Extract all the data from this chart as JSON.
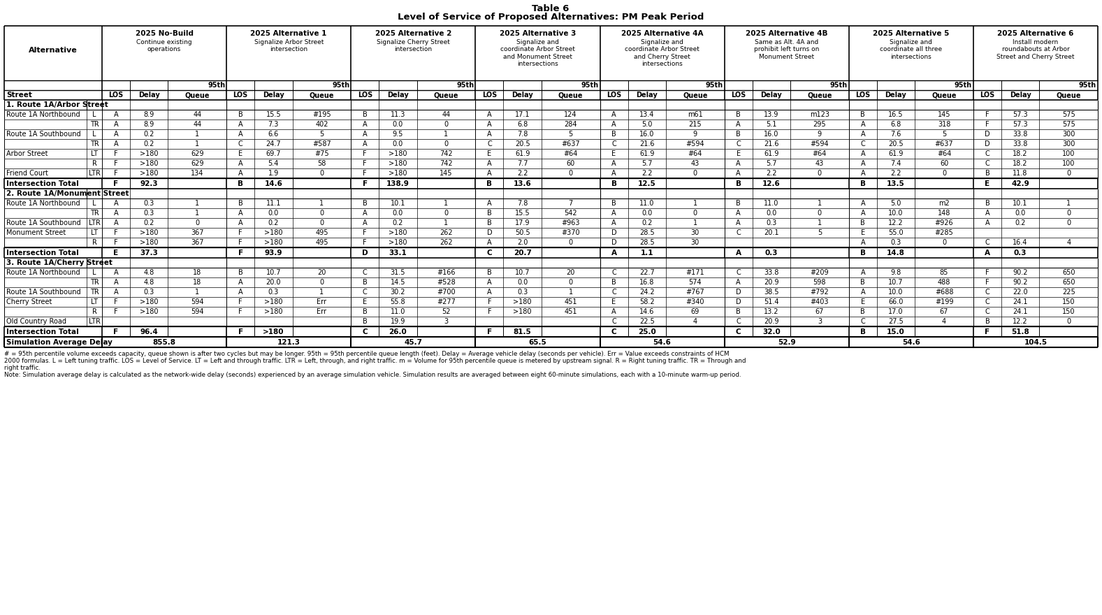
{
  "title1": "Table 6",
  "title2": "Level of Service of Proposed Alternatives: PM Peak Period",
  "col_headers": [
    "2025 No-Build",
    "2025 Alternative 1",
    "2025 Alternative 2",
    "2025 Alternative 3",
    "2025 Alternative 4A",
    "2025 Alternative 4B",
    "2025 Alternative 5",
    "2025 Alternative 6"
  ],
  "col_subtexts": [
    "Continue existing\noperations",
    "Signalize Arbor Street\nintersection",
    "Signalize Cherry Street\nintersection",
    "Signalize and\ncoordinate Arbor Street\nand Monument Street\nintersections",
    "Signalize and\ncoordinate Arbor Street\nand Cherry Street\nintersections",
    "Same as Alt. 4A and\nprohibit left turns on\nMonument Street",
    "Signalize and\ncoordinate all three\nintersections",
    "Install modern\nroundabouts at Arbor\nStreet and Cherry Street"
  ],
  "rows": [
    {
      "type": "section",
      "label": "1. Route 1A/Arbor Street"
    },
    {
      "type": "data",
      "street": "Route 1A Northbound",
      "move": "L",
      "data": [
        [
          "A",
          "8.9",
          "44"
        ],
        [
          "B",
          "15.5",
          "#195"
        ],
        [
          "B",
          "11.3",
          "44"
        ],
        [
          "A",
          "17.1",
          "124"
        ],
        [
          "A",
          "13.4",
          "m61"
        ],
        [
          "B",
          "13.9",
          "m123"
        ],
        [
          "B",
          "16.5",
          "145"
        ],
        [
          "F",
          "57.3",
          "575"
        ]
      ]
    },
    {
      "type": "data",
      "street": "",
      "move": "TR",
      "data": [
        [
          "A",
          "8.9",
          "44"
        ],
        [
          "A",
          "7.3",
          "402"
        ],
        [
          "A",
          "0.0",
          "0"
        ],
        [
          "A",
          "6.8",
          "284"
        ],
        [
          "A",
          "5.0",
          "215"
        ],
        [
          "A",
          "5.1",
          "295"
        ],
        [
          "A",
          "6.8",
          "318"
        ],
        [
          "F",
          "57.3",
          "575"
        ]
      ]
    },
    {
      "type": "data",
      "street": "Route 1A Southbound",
      "move": "L",
      "data": [
        [
          "A",
          "0.2",
          "1"
        ],
        [
          "A",
          "6.6",
          "5"
        ],
        [
          "A",
          "9.5",
          "1"
        ],
        [
          "A",
          "7.8",
          "5"
        ],
        [
          "B",
          "16.0",
          "9"
        ],
        [
          "B",
          "16.0",
          "9"
        ],
        [
          "A",
          "7.6",
          "5"
        ],
        [
          "D",
          "33.8",
          "300"
        ]
      ]
    },
    {
      "type": "data",
      "street": "",
      "move": "TR",
      "data": [
        [
          "A",
          "0.2",
          "1"
        ],
        [
          "C",
          "24.7",
          "#587"
        ],
        [
          "A",
          "0.0",
          "0"
        ],
        [
          "C",
          "20.5",
          "#637"
        ],
        [
          "C",
          "21.6",
          "#594"
        ],
        [
          "C",
          "21.6",
          "#594"
        ],
        [
          "C",
          "20.5",
          "#637"
        ],
        [
          "D",
          "33.8",
          "300"
        ]
      ]
    },
    {
      "type": "data",
      "street": "Arbor Street",
      "move": "LT",
      "data": [
        [
          "F",
          ">180",
          "629"
        ],
        [
          "E",
          "69.7",
          "#75"
        ],
        [
          "F",
          ">180",
          "742"
        ],
        [
          "E",
          "61.9",
          "#64"
        ],
        [
          "E",
          "61.9",
          "#64"
        ],
        [
          "E",
          "61.9",
          "#64"
        ],
        [
          "A",
          "61.9",
          "#64"
        ],
        [
          "C",
          "18.2",
          "100"
        ]
      ]
    },
    {
      "type": "data",
      "street": "",
      "move": "R",
      "data": [
        [
          "F",
          ">180",
          "629"
        ],
        [
          "A",
          "5.4",
          "58"
        ],
        [
          "F",
          ">180",
          "742"
        ],
        [
          "A",
          "7.7",
          "60"
        ],
        [
          "A",
          "5.7",
          "43"
        ],
        [
          "A",
          "5.7",
          "43"
        ],
        [
          "A",
          "7.4",
          "60"
        ],
        [
          "C",
          "18.2",
          "100"
        ]
      ]
    },
    {
      "type": "data",
      "street": "Friend Court",
      "move": "LTR",
      "data": [
        [
          "F",
          ">180",
          "134"
        ],
        [
          "A",
          "1.9",
          "0"
        ],
        [
          "F",
          ">180",
          "145"
        ],
        [
          "A",
          "2.2",
          "0"
        ],
        [
          "A",
          "2.2",
          "0"
        ],
        [
          "A",
          "2.2",
          "0"
        ],
        [
          "A",
          "2.2",
          "0"
        ],
        [
          "B",
          "11.8",
          "0"
        ]
      ]
    },
    {
      "type": "total",
      "label": "Intersection Total",
      "data": [
        [
          "F",
          "92.3",
          ""
        ],
        [
          "B",
          "14.6",
          ""
        ],
        [
          "F",
          "138.9",
          ""
        ],
        [
          "B",
          "13.6",
          ""
        ],
        [
          "B",
          "12.5",
          ""
        ],
        [
          "B",
          "12.6",
          ""
        ],
        [
          "B",
          "13.5",
          ""
        ],
        [
          "E",
          "42.9",
          ""
        ]
      ]
    },
    {
      "type": "section",
      "label": "2. Route 1A/Monument Street"
    },
    {
      "type": "data",
      "street": "Route 1A Northbound",
      "move": "L",
      "data": [
        [
          "A",
          "0.3",
          "1"
        ],
        [
          "B",
          "11.1",
          "1"
        ],
        [
          "B",
          "10.1",
          "1"
        ],
        [
          "A",
          "7.8",
          "7"
        ],
        [
          "B",
          "11.0",
          "1"
        ],
        [
          "B",
          "11.0",
          "1"
        ],
        [
          "A",
          "5.0",
          "m2"
        ],
        [
          "B",
          "10.1",
          "1"
        ]
      ]
    },
    {
      "type": "data",
      "street": "",
      "move": "TR",
      "data": [
        [
          "A",
          "0.3",
          "1"
        ],
        [
          "A",
          "0.0",
          "0"
        ],
        [
          "A",
          "0.0",
          "0"
        ],
        [
          "B",
          "15.5",
          "542"
        ],
        [
          "A",
          "0.0",
          "0"
        ],
        [
          "A",
          "0.0",
          "0"
        ],
        [
          "A",
          "10.0",
          "148"
        ],
        [
          "A",
          "0.0",
          "0"
        ]
      ]
    },
    {
      "type": "data",
      "street": "Route 1A Southbound",
      "move": "LTR",
      "data": [
        [
          "A",
          "0.2",
          "0"
        ],
        [
          "A",
          "0.2",
          "0"
        ],
        [
          "A",
          "0.2",
          "1"
        ],
        [
          "B",
          "17.9",
          "#963"
        ],
        [
          "A",
          "0.2",
          "1"
        ],
        [
          "A",
          "0.3",
          "1"
        ],
        [
          "B",
          "12.2",
          "#926"
        ],
        [
          "A",
          "0.2",
          "0"
        ]
      ]
    },
    {
      "type": "data",
      "street": "Monument Street",
      "move": "LT",
      "data": [
        [
          "F",
          ">180",
          "367"
        ],
        [
          "F",
          ">180",
          "495"
        ],
        [
          "F",
          ">180",
          "262"
        ],
        [
          "D",
          "50.5",
          "#370"
        ],
        [
          "D",
          "28.5",
          "30"
        ],
        [
          "C",
          "20.1",
          "5"
        ],
        [
          "E",
          "55.0",
          "#285"
        ],
        [
          "",
          "",
          ""
        ]
      ]
    },
    {
      "type": "data",
      "street": "",
      "move": "R",
      "data": [
        [
          "F",
          ">180",
          "367"
        ],
        [
          "F",
          ">180",
          "495"
        ],
        [
          "F",
          ">180",
          "262"
        ],
        [
          "A",
          "2.0",
          "0"
        ],
        [
          "D",
          "28.5",
          "30"
        ],
        [
          "",
          "",
          ""
        ],
        [
          "A",
          "0.3",
          "0"
        ],
        [
          "C",
          "16.4",
          "4"
        ]
      ]
    },
    {
      "type": "total",
      "label": "Intersection Total",
      "data": [
        [
          "E",
          "37.3",
          ""
        ],
        [
          "F",
          "93.9",
          ""
        ],
        [
          "D",
          "33.1",
          ""
        ],
        [
          "C",
          "20.7",
          ""
        ],
        [
          "A",
          "1.1",
          ""
        ],
        [
          "A",
          "0.3",
          ""
        ],
        [
          "B",
          "14.8",
          ""
        ],
        [
          "A",
          "0.3",
          ""
        ]
      ]
    },
    {
      "type": "section",
      "label": "3. Route 1A/Cherry Street"
    },
    {
      "type": "data",
      "street": "Route 1A Northbound",
      "move": "L",
      "data": [
        [
          "A",
          "4.8",
          "18"
        ],
        [
          "B",
          "10.7",
          "20"
        ],
        [
          "C",
          "31.5",
          "#166"
        ],
        [
          "B",
          "10.7",
          "20"
        ],
        [
          "C",
          "22.7",
          "#171"
        ],
        [
          "C",
          "33.8",
          "#209"
        ],
        [
          "A",
          "9.8",
          "85"
        ],
        [
          "F",
          "90.2",
          "650"
        ]
      ]
    },
    {
      "type": "data",
      "street": "",
      "move": "TR",
      "data": [
        [
          "A",
          "4.8",
          "18"
        ],
        [
          "A",
          "20.0",
          "0"
        ],
        [
          "B",
          "14.5",
          "#528"
        ],
        [
          "A",
          "0.0",
          "0"
        ],
        [
          "B",
          "16.8",
          "574"
        ],
        [
          "A",
          "20.9",
          "598"
        ],
        [
          "B",
          "10.7",
          "488"
        ],
        [
          "F",
          "90.2",
          "650"
        ]
      ]
    },
    {
      "type": "data",
      "street": "Route 1A Southbound",
      "move": "TR",
      "data": [
        [
          "A",
          "0.3",
          "1"
        ],
        [
          "A",
          "0.3",
          "1"
        ],
        [
          "C",
          "30.2",
          "#700"
        ],
        [
          "A",
          "0.3",
          "1"
        ],
        [
          "C",
          "24.2",
          "#767"
        ],
        [
          "D",
          "38.5",
          "#792"
        ],
        [
          "A",
          "10.0",
          "#688"
        ],
        [
          "C",
          "22.0",
          "225"
        ]
      ]
    },
    {
      "type": "data",
      "street": "Cherry Street",
      "move": "LT",
      "data": [
        [
          "F",
          ">180",
          "594"
        ],
        [
          "F",
          ">180",
          "Err"
        ],
        [
          "E",
          "55.8",
          "#277"
        ],
        [
          "F",
          ">180",
          "451"
        ],
        [
          "E",
          "58.2",
          "#340"
        ],
        [
          "D",
          "51.4",
          "#403"
        ],
        [
          "E",
          "66.0",
          "#199"
        ],
        [
          "C",
          "24.1",
          "150"
        ]
      ]
    },
    {
      "type": "data",
      "street": "",
      "move": "R",
      "data": [
        [
          "F",
          ">180",
          "594"
        ],
        [
          "F",
          ">180",
          "Err"
        ],
        [
          "B",
          "11.0",
          "52"
        ],
        [
          "F",
          ">180",
          "451"
        ],
        [
          "A",
          "14.6",
          "69"
        ],
        [
          "B",
          "13.2",
          "67"
        ],
        [
          "B",
          "17.0",
          "67"
        ],
        [
          "C",
          "24.1",
          "150"
        ]
      ]
    },
    {
      "type": "data",
      "street": "Old Country Road",
      "move": "LTR",
      "data": [
        [
          "",
          "",
          ""
        ],
        [
          "",
          "",
          ""
        ],
        [
          "B",
          "19.9",
          "3"
        ],
        [
          "",
          "",
          ""
        ],
        [
          "C",
          "22.5",
          "4"
        ],
        [
          "C",
          "20.9",
          "3"
        ],
        [
          "C",
          "27.5",
          "4"
        ],
        [
          "B",
          "12.2",
          "0"
        ]
      ]
    },
    {
      "type": "total",
      "label": "Intersection Total",
      "data": [
        [
          "F",
          "96.4",
          ""
        ],
        [
          "F",
          ">180",
          ""
        ],
        [
          "C",
          "26.0",
          ""
        ],
        [
          "F",
          "81.5",
          ""
        ],
        [
          "C",
          "25.0",
          ""
        ],
        [
          "C",
          "32.0",
          ""
        ],
        [
          "B",
          "15.0",
          ""
        ],
        [
          "F",
          "51.8",
          ""
        ]
      ]
    },
    {
      "type": "sim",
      "label": "Simulation Average Delay",
      "data": [
        "855.8",
        "121.3",
        "45.7",
        "65.5",
        "54.6",
        "52.9",
        "54.6",
        "104.5"
      ]
    }
  ],
  "footnotes": [
    "# = 95th percentile volume exceeds capacity, queue shown is after two cycles but may be longer. 95th = 95th percentile queue length (feet). Delay = Average vehicle delay (seconds per vehicle). Err = Value exceeds constraints of HCM",
    "2000 formulas. L = Left tuning traffic. LOS = Level of Service. LT = Left and through traffic. LTR = Left, through, and right traffic. m = Volume for 95th percentile queue is metered by upstream signal. R = Right tuning traffic. TR = Through and",
    "right traffic.",
    "Note: Simulation average delay is calculated as the network-wide delay (seconds) experienced by an average simulation vehicle. Simulation results are averaged between eight 60-minute simulations, each with a 10-minute warm-up period."
  ]
}
